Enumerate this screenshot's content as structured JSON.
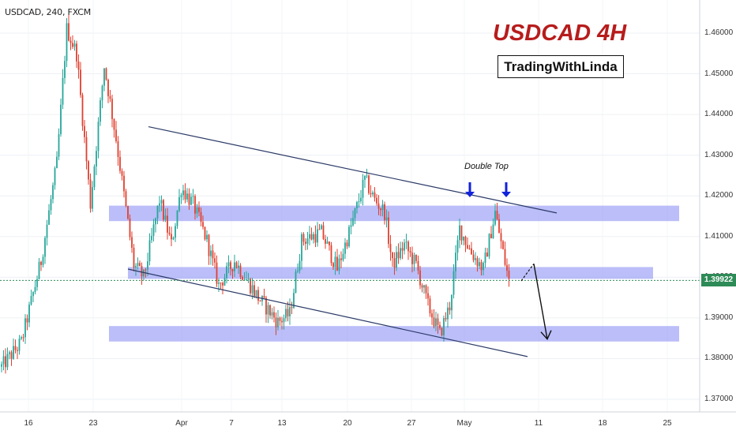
{
  "symbol_label": "USDCAD, 240, FXCM",
  "title": "USDCAD  4H",
  "brand": "TradingWithLinda",
  "pattern_label": "Double Top",
  "current_price": "1.39922",
  "colors": {
    "bull": "#26a69a",
    "bear": "#e0402f",
    "zone": "#9ea2f5",
    "trendline": "#2b3a67",
    "arrow_marker": "#1122dd",
    "title": "#b71c1c",
    "price_line": "#2e8b57"
  },
  "chart_data": {
    "type": "candlestick",
    "ylim": [
      1.365,
      1.467
    ],
    "yticks": [
      "1.46000",
      "1.45000",
      "1.44000",
      "1.43000",
      "1.42000",
      "1.41000",
      "1.40000",
      "1.39000",
      "1.38000",
      "1.37000"
    ],
    "ytick_values": [
      1.46,
      1.45,
      1.44,
      1.43,
      1.42,
      1.41,
      1.4,
      1.39,
      1.38,
      1.37
    ],
    "xticks": [
      "16",
      "23",
      "Apr",
      "7",
      "13",
      "20",
      "27",
      "May",
      "11",
      "18",
      "25"
    ],
    "price_path": [
      {
        "bar": 0,
        "price": 1.378
      },
      {
        "bar": 10,
        "price": 1.384
      },
      {
        "bar": 20,
        "price": 1.404
      },
      {
        "bar": 28,
        "price": 1.428
      },
      {
        "bar": 33,
        "price": 1.461
      },
      {
        "bar": 38,
        "price": 1.455
      },
      {
        "bar": 45,
        "price": 1.418
      },
      {
        "bar": 52,
        "price": 1.452
      },
      {
        "bar": 58,
        "price": 1.434
      },
      {
        "bar": 67,
        "price": 1.403
      },
      {
        "bar": 72,
        "price": 1.4
      },
      {
        "bar": 80,
        "price": 1.419
      },
      {
        "bar": 86,
        "price": 1.408
      },
      {
        "bar": 91,
        "price": 1.422
      },
      {
        "bar": 97,
        "price": 1.418
      },
      {
        "bar": 104,
        "price": 1.409
      },
      {
        "bar": 110,
        "price": 1.398
      },
      {
        "bar": 118,
        "price": 1.404
      },
      {
        "bar": 130,
        "price": 1.395
      },
      {
        "bar": 140,
        "price": 1.389
      },
      {
        "bar": 146,
        "price": 1.391
      },
      {
        "bar": 152,
        "price": 1.409
      },
      {
        "bar": 162,
        "price": 1.411
      },
      {
        "bar": 170,
        "price": 1.402
      },
      {
        "bar": 178,
        "price": 1.414
      },
      {
        "bar": 184,
        "price": 1.424
      },
      {
        "bar": 189,
        "price": 1.419
      },
      {
        "bar": 194,
        "price": 1.416
      },
      {
        "bar": 198,
        "price": 1.403
      },
      {
        "bar": 204,
        "price": 1.408
      },
      {
        "bar": 210,
        "price": 1.403
      },
      {
        "bar": 216,
        "price": 1.393
      },
      {
        "bar": 222,
        "price": 1.386
      },
      {
        "bar": 227,
        "price": 1.393
      },
      {
        "bar": 232,
        "price": 1.412
      },
      {
        "bar": 238,
        "price": 1.406
      },
      {
        "bar": 244,
        "price": 1.402
      },
      {
        "bar": 250,
        "price": 1.416
      },
      {
        "bar": 254,
        "price": 1.406
      },
      {
        "bar": 257,
        "price": 1.399
      }
    ],
    "zones": [
      {
        "top": 1.4176,
        "bottom": 1.4138,
        "x_start": "Mar 24",
        "x_end": "May 26"
      },
      {
        "top": 1.4025,
        "bottom": 1.3996,
        "x_start": "Mar 25",
        "x_end": "May 24"
      },
      {
        "top": 1.388,
        "bottom": 1.3842,
        "x_start": "Mar 24",
        "x_end": "May 26"
      }
    ],
    "trendlines": [
      {
        "from": {
          "date": "Mar 26",
          "price": 1.437
        },
        "to": {
          "date": "May 12",
          "price": 1.4158
        }
      },
      {
        "from": {
          "date": "Mar 25",
          "price": 1.402
        },
        "to": {
          "date": "May 11",
          "price": 1.3805
        }
      }
    ],
    "projection": {
      "from": 1.4033,
      "to": 1.3848
    }
  }
}
